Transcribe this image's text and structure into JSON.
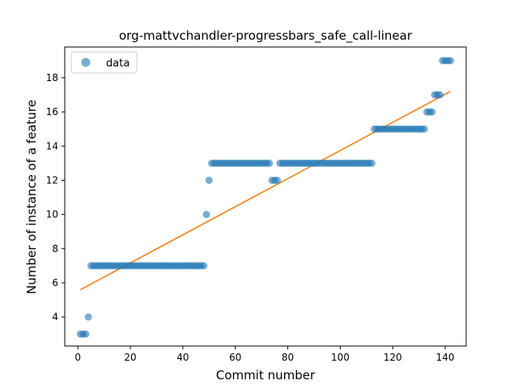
{
  "chart_data": {
    "type": "scatter",
    "title": "org-mattvchandler-progressbars_safe_call-linear",
    "xlabel": "Commit number",
    "ylabel": "Number of instance of a feature",
    "xlim": [
      -5,
      148
    ],
    "ylim": [
      2.3,
      19.8
    ],
    "xticks": [
      0,
      20,
      40,
      60,
      80,
      100,
      120,
      140
    ],
    "yticks": [
      4,
      6,
      8,
      10,
      12,
      14,
      16,
      18
    ],
    "grid": false,
    "legend": {
      "placement": "upper-left",
      "entries": [
        "data"
      ]
    },
    "colors": {
      "data": "#1f77b4",
      "fit": "#ff7f0e"
    },
    "series": [
      {
        "name": "data",
        "kind": "scatter",
        "points": [
          [
            1,
            3
          ],
          [
            2,
            3
          ],
          [
            3,
            3
          ],
          [
            4,
            4
          ],
          [
            5,
            7
          ],
          [
            6,
            7
          ],
          [
            7,
            7
          ],
          [
            8,
            7
          ],
          [
            9,
            7
          ],
          [
            10,
            7
          ],
          [
            11,
            7
          ],
          [
            12,
            7
          ],
          [
            13,
            7
          ],
          [
            14,
            7
          ],
          [
            15,
            7
          ],
          [
            16,
            7
          ],
          [
            17,
            7
          ],
          [
            18,
            7
          ],
          [
            19,
            7
          ],
          [
            20,
            7
          ],
          [
            21,
            7
          ],
          [
            22,
            7
          ],
          [
            23,
            7
          ],
          [
            24,
            7
          ],
          [
            25,
            7
          ],
          [
            26,
            7
          ],
          [
            27,
            7
          ],
          [
            28,
            7
          ],
          [
            29,
            7
          ],
          [
            30,
            7
          ],
          [
            31,
            7
          ],
          [
            32,
            7
          ],
          [
            33,
            7
          ],
          [
            34,
            7
          ],
          [
            35,
            7
          ],
          [
            36,
            7
          ],
          [
            37,
            7
          ],
          [
            38,
            7
          ],
          [
            39,
            7
          ],
          [
            40,
            7
          ],
          [
            41,
            7
          ],
          [
            42,
            7
          ],
          [
            43,
            7
          ],
          [
            44,
            7
          ],
          [
            45,
            7
          ],
          [
            46,
            7
          ],
          [
            47,
            7
          ],
          [
            48,
            7
          ],
          [
            49,
            10
          ],
          [
            50,
            12
          ],
          [
            51,
            13
          ],
          [
            52,
            13
          ],
          [
            53,
            13
          ],
          [
            54,
            13
          ],
          [
            55,
            13
          ],
          [
            56,
            13
          ],
          [
            57,
            13
          ],
          [
            58,
            13
          ],
          [
            59,
            13
          ],
          [
            60,
            13
          ],
          [
            61,
            13
          ],
          [
            62,
            13
          ],
          [
            63,
            13
          ],
          [
            64,
            13
          ],
          [
            65,
            13
          ],
          [
            66,
            13
          ],
          [
            67,
            13
          ],
          [
            68,
            13
          ],
          [
            69,
            13
          ],
          [
            70,
            13
          ],
          [
            71,
            13
          ],
          [
            72,
            13
          ],
          [
            73,
            13
          ],
          [
            74,
            12
          ],
          [
            75,
            12
          ],
          [
            76,
            12
          ],
          [
            77,
            13
          ],
          [
            78,
            13
          ],
          [
            79,
            13
          ],
          [
            80,
            13
          ],
          [
            81,
            13
          ],
          [
            82,
            13
          ],
          [
            83,
            13
          ],
          [
            84,
            13
          ],
          [
            85,
            13
          ],
          [
            86,
            13
          ],
          [
            87,
            13
          ],
          [
            88,
            13
          ],
          [
            89,
            13
          ],
          [
            90,
            13
          ],
          [
            91,
            13
          ],
          [
            92,
            13
          ],
          [
            93,
            13
          ],
          [
            94,
            13
          ],
          [
            95,
            13
          ],
          [
            96,
            13
          ],
          [
            97,
            13
          ],
          [
            98,
            13
          ],
          [
            99,
            13
          ],
          [
            100,
            13
          ],
          [
            101,
            13
          ],
          [
            102,
            13
          ],
          [
            103,
            13
          ],
          [
            104,
            13
          ],
          [
            105,
            13
          ],
          [
            106,
            13
          ],
          [
            107,
            13
          ],
          [
            108,
            13
          ],
          [
            109,
            13
          ],
          [
            110,
            13
          ],
          [
            111,
            13
          ],
          [
            112,
            13
          ],
          [
            113,
            15
          ],
          [
            114,
            15
          ],
          [
            115,
            15
          ],
          [
            116,
            15
          ],
          [
            117,
            15
          ],
          [
            118,
            15
          ],
          [
            119,
            15
          ],
          [
            120,
            15
          ],
          [
            121,
            15
          ],
          [
            122,
            15
          ],
          [
            123,
            15
          ],
          [
            124,
            15
          ],
          [
            125,
            15
          ],
          [
            126,
            15
          ],
          [
            127,
            15
          ],
          [
            128,
            15
          ],
          [
            129,
            15
          ],
          [
            130,
            15
          ],
          [
            131,
            15
          ],
          [
            132,
            15
          ],
          [
            133,
            16
          ],
          [
            134,
            16
          ],
          [
            135,
            16
          ],
          [
            136,
            17
          ],
          [
            137,
            17
          ],
          [
            138,
            17
          ],
          [
            139,
            19
          ],
          [
            140,
            19
          ],
          [
            141,
            19
          ],
          [
            142,
            19
          ]
        ]
      },
      {
        "name": "",
        "kind": "line",
        "points": [
          [
            1,
            5.6
          ],
          [
            142,
            17.2
          ]
        ]
      }
    ]
  }
}
